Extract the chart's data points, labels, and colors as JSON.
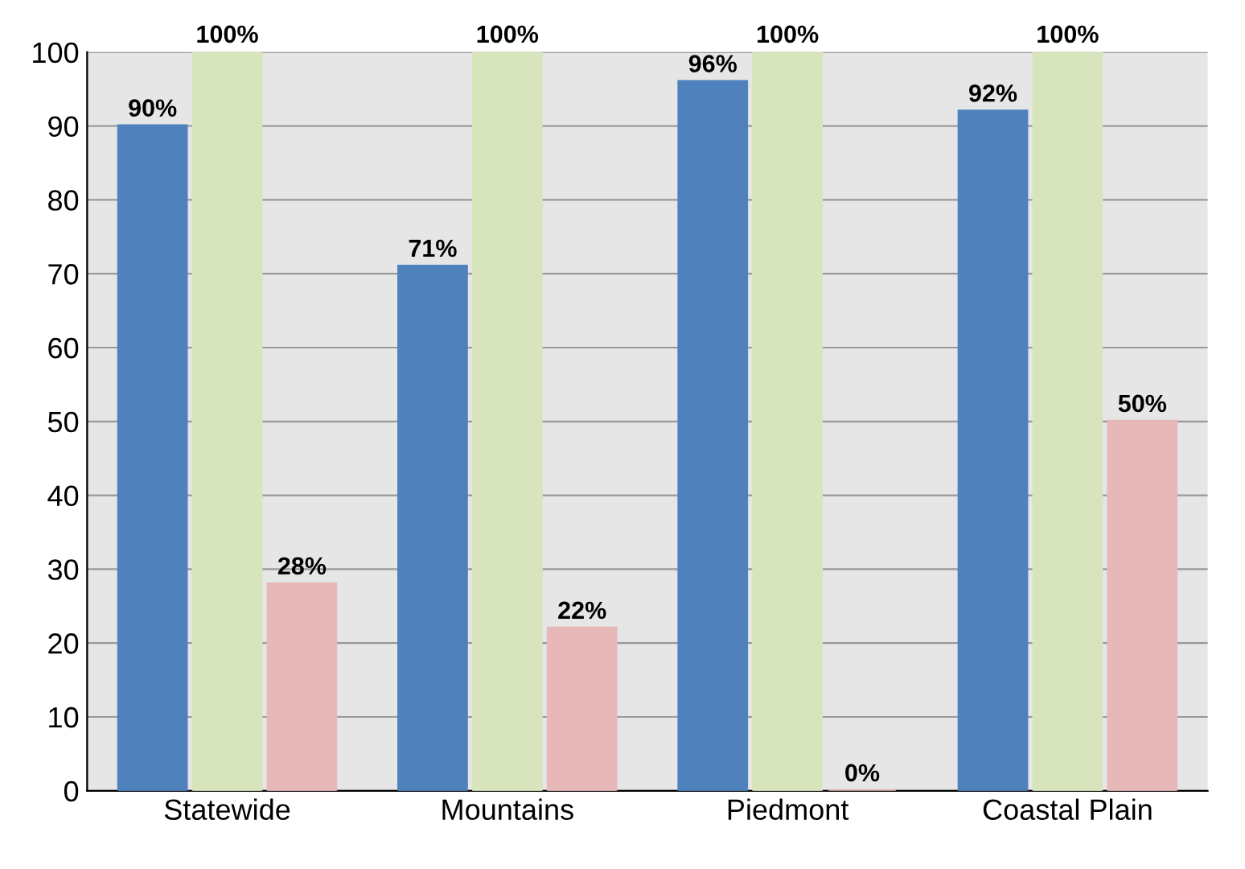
{
  "chart_data": {
    "type": "bar",
    "categories": [
      "Statewide",
      "Mountains",
      "Piedmont",
      "Coastal Plain"
    ],
    "series": [
      {
        "color": "#4f81bd",
        "values": [
          90,
          71,
          96,
          92
        ],
        "value_labels": [
          "90%",
          "71%",
          "96%",
          "92%"
        ]
      },
      {
        "color": "#d7e4bc",
        "values": [
          100,
          100,
          100,
          100
        ],
        "value_labels": [
          "100%",
          "100%",
          "100%",
          "100%"
        ]
      },
      {
        "color": "#e6b9b8",
        "values": [
          28,
          22,
          0,
          50
        ],
        "value_labels": [
          "28%",
          "22%",
          "0%",
          "50%"
        ]
      }
    ],
    "ylim": [
      0,
      100
    ],
    "yticks": [
      0,
      10,
      20,
      30,
      40,
      50,
      60,
      70,
      80,
      90,
      100
    ],
    "grid": "y"
  }
}
